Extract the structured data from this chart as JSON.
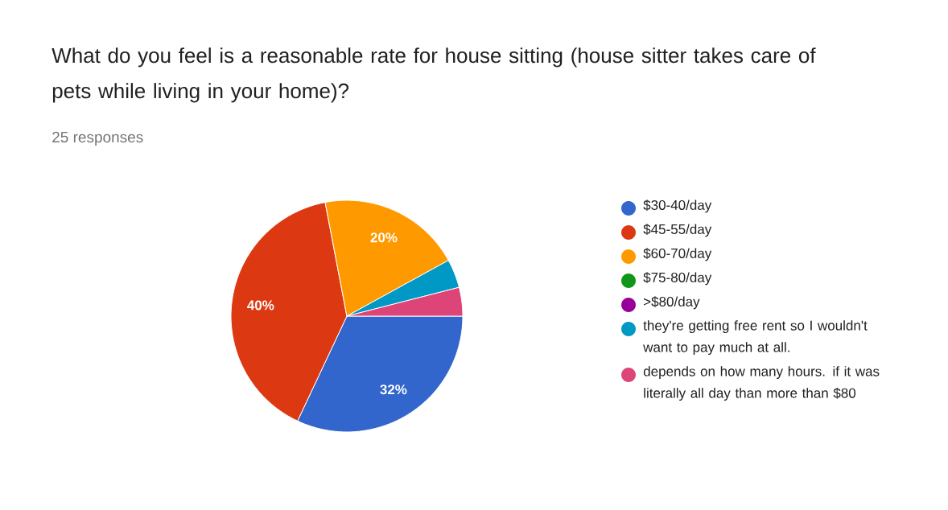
{
  "chart_data": {
    "type": "pie",
    "title": "What do you feel is a reasonable rate for house sitting (house sitter takes care of pets while living in your home)?",
    "subtitle": "25 responses",
    "categories": [
      "$30-40/day",
      "$45-55/day",
      "$60-70/day",
      "$75-80/day",
      ">$80/day",
      "they're getting free rent so I wouldn't want to pay much at all.",
      "depends on how many hours. if it was literally all day than more than $80"
    ],
    "values": [
      32,
      40,
      20,
      0,
      0,
      4,
      4
    ],
    "colors": [
      "#3366cc",
      "#dc3912",
      "#ff9900",
      "#109618",
      "#990099",
      "#0099c6",
      "#dd4477"
    ],
    "value_labels": [
      "32%",
      "40%",
      "20%",
      null,
      null,
      null,
      null
    ],
    "legend": "right"
  }
}
